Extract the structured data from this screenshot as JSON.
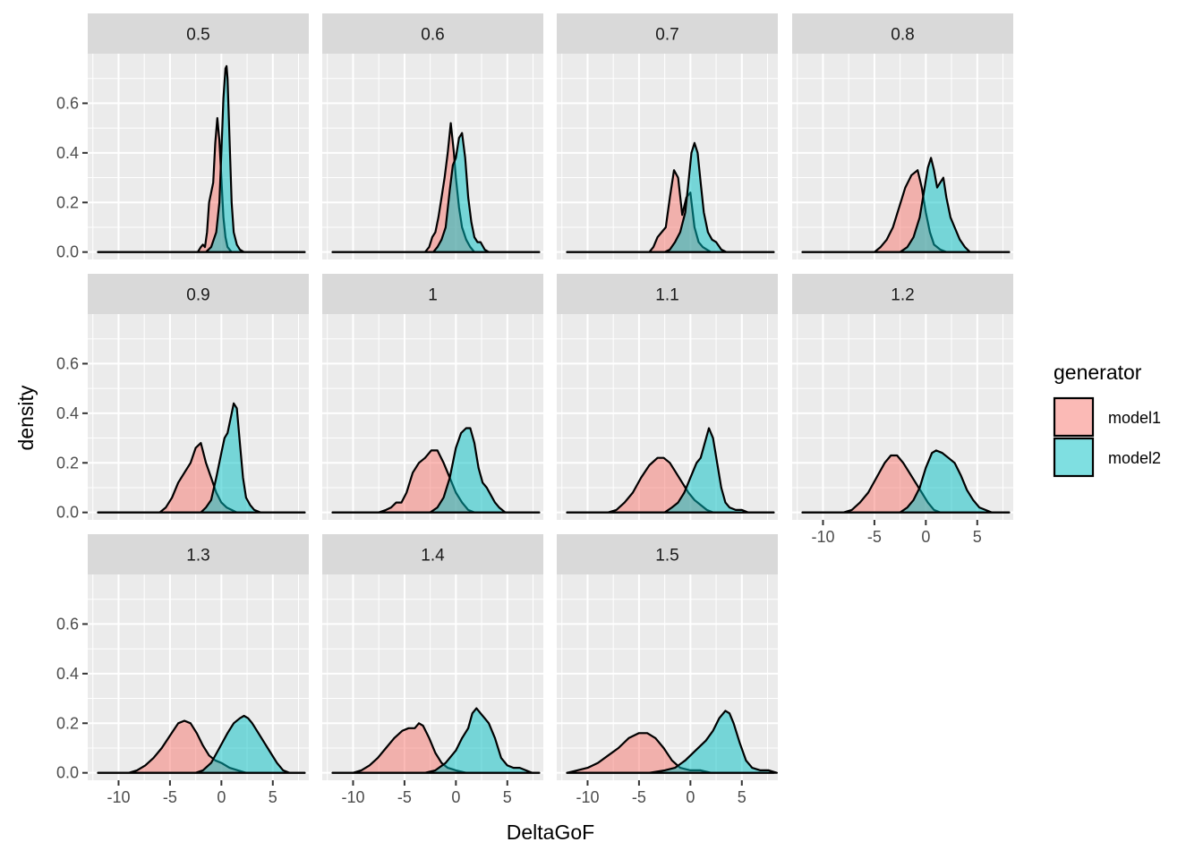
{
  "chart_data": {
    "type": "area",
    "subtype": "faceted-density",
    "xlabel": "DeltaGoF",
    "ylabel": "density",
    "xlim": [
      -13,
      8.5
    ],
    "ylim": [
      -0.03,
      0.8
    ],
    "x_ticks": [
      -10,
      -5,
      0,
      5
    ],
    "x_tick_labels": [
      "-10",
      "-5",
      "0",
      "5"
    ],
    "y_ticks": [
      0.0,
      0.2,
      0.4,
      0.6
    ],
    "y_tick_labels": [
      "0.0",
      "0.2",
      "0.4",
      "0.6"
    ],
    "grid": true,
    "facet_layout": {
      "ncol": 4,
      "nrow": 3
    },
    "legend": {
      "title": "generator",
      "placement": "right",
      "entries": [
        {
          "name": "model1",
          "color": "#F8766D"
        },
        {
          "name": "model2",
          "color": "#00BFC4"
        }
      ]
    },
    "panels": [
      {
        "label": "0.5",
        "series": [
          {
            "name": "model1",
            "x": [
              -2.3,
              -2.0,
              -1.8,
              -1.6,
              -1.4,
              -1.2,
              -1.0,
              -0.8,
              -0.6,
              -0.4,
              -0.2,
              0.0,
              0.2,
              0.4,
              0.6,
              0.8,
              1.0,
              1.2
            ],
            "y": [
              0.0,
              0.02,
              0.03,
              0.02,
              0.08,
              0.2,
              0.24,
              0.28,
              0.44,
              0.54,
              0.45,
              0.3,
              0.14,
              0.06,
              0.02,
              0.01,
              0.0,
              0.0
            ]
          },
          {
            "name": "model2",
            "x": [
              -1.5,
              -1.0,
              -0.5,
              -0.2,
              0.0,
              0.2,
              0.4,
              0.5,
              0.6,
              0.8,
              1.0,
              1.2,
              1.5,
              1.8,
              2.2
            ],
            "y": [
              0.0,
              0.02,
              0.08,
              0.2,
              0.4,
              0.62,
              0.74,
              0.75,
              0.7,
              0.45,
              0.2,
              0.08,
              0.03,
              0.01,
              0.0
            ]
          }
        ]
      },
      {
        "label": "0.6",
        "series": [
          {
            "name": "model1",
            "x": [
              -3.0,
              -2.6,
              -2.3,
              -2.0,
              -1.7,
              -1.4,
              -1.1,
              -0.8,
              -0.5,
              -0.2,
              0.0,
              0.3,
              0.6,
              1.0,
              1.4,
              1.8
            ],
            "y": [
              0.0,
              0.02,
              0.06,
              0.08,
              0.14,
              0.22,
              0.3,
              0.4,
              0.52,
              0.4,
              0.3,
              0.18,
              0.1,
              0.05,
              0.02,
              0.0
            ]
          },
          {
            "name": "model2",
            "x": [
              -2.2,
              -1.8,
              -1.4,
              -1.0,
              -0.6,
              -0.3,
              0.0,
              0.3,
              0.6,
              0.9,
              1.2,
              1.5,
              1.8,
              2.1,
              2.4,
              2.8,
              3.2
            ],
            "y": [
              0.0,
              0.02,
              0.05,
              0.1,
              0.25,
              0.35,
              0.38,
              0.46,
              0.48,
              0.38,
              0.22,
              0.12,
              0.06,
              0.04,
              0.04,
              0.01,
              0.0
            ]
          }
        ]
      },
      {
        "label": "0.7",
        "series": [
          {
            "name": "model1",
            "x": [
              -4.0,
              -3.6,
              -3.2,
              -2.8,
              -2.4,
              -2.0,
              -1.6,
              -1.2,
              -0.8,
              -0.4,
              0.0,
              0.4,
              0.8,
              1.2,
              1.6,
              2.0
            ],
            "y": [
              0.0,
              0.02,
              0.06,
              0.08,
              0.1,
              0.22,
              0.33,
              0.3,
              0.15,
              0.22,
              0.24,
              0.1,
              0.04,
              0.02,
              0.01,
              0.0
            ]
          },
          {
            "name": "model2",
            "x": [
              -2.5,
              -2.0,
              -1.5,
              -1.0,
              -0.5,
              -0.2,
              0.1,
              0.4,
              0.7,
              1.0,
              1.3,
              1.7,
              2.1,
              2.5,
              3.0,
              3.5
            ],
            "y": [
              0.0,
              0.01,
              0.04,
              0.08,
              0.16,
              0.28,
              0.4,
              0.44,
              0.4,
              0.28,
              0.16,
              0.08,
              0.05,
              0.04,
              0.01,
              0.0
            ]
          }
        ]
      },
      {
        "label": "0.8",
        "series": [
          {
            "name": "model1",
            "x": [
              -5.0,
              -4.4,
              -3.8,
              -3.2,
              -2.6,
              -2.0,
              -1.4,
              -0.8,
              -0.4,
              0.0,
              0.4,
              0.8,
              1.4,
              2.0
            ],
            "y": [
              0.0,
              0.02,
              0.05,
              0.1,
              0.18,
              0.26,
              0.31,
              0.33,
              0.26,
              0.16,
              0.08,
              0.03,
              0.01,
              0.0
            ]
          },
          {
            "name": "model2",
            "x": [
              -2.5,
              -1.8,
              -1.2,
              -0.6,
              -0.2,
              0.2,
              0.5,
              0.8,
              1.1,
              1.4,
              1.7,
              2.0,
              2.4,
              2.8,
              3.3,
              3.8,
              4.3
            ],
            "y": [
              0.0,
              0.02,
              0.06,
              0.14,
              0.24,
              0.34,
              0.38,
              0.33,
              0.26,
              0.28,
              0.3,
              0.22,
              0.14,
              0.1,
              0.05,
              0.02,
              0.0
            ]
          }
        ]
      },
      {
        "label": "0.9",
        "series": [
          {
            "name": "model1",
            "x": [
              -6.0,
              -5.4,
              -4.8,
              -4.2,
              -3.6,
              -3.0,
              -2.5,
              -2.0,
              -1.5,
              -1.0,
              -0.5,
              0.0,
              0.5,
              1.0,
              1.5
            ],
            "y": [
              0.0,
              0.02,
              0.06,
              0.12,
              0.16,
              0.2,
              0.26,
              0.28,
              0.2,
              0.14,
              0.08,
              0.04,
              0.02,
              0.01,
              0.0
            ]
          },
          {
            "name": "model2",
            "x": [
              -2.0,
              -1.5,
              -1.0,
              -0.5,
              0.0,
              0.3,
              0.6,
              0.9,
              1.2,
              1.5,
              1.8,
              2.1,
              2.4,
              2.8,
              3.2,
              3.8
            ],
            "y": [
              0.0,
              0.02,
              0.05,
              0.14,
              0.24,
              0.3,
              0.32,
              0.38,
              0.44,
              0.42,
              0.28,
              0.14,
              0.06,
              0.03,
              0.01,
              0.0
            ]
          }
        ]
      },
      {
        "label": "1",
        "series": [
          {
            "name": "model1",
            "x": [
              -7.5,
              -6.8,
              -6.3,
              -5.8,
              -5.3,
              -4.8,
              -4.2,
              -3.6,
              -3.0,
              -2.4,
              -1.8,
              -1.2,
              -0.6,
              0.0,
              0.6,
              1.2,
              1.8
            ],
            "y": [
              0.0,
              0.01,
              0.02,
              0.04,
              0.04,
              0.08,
              0.16,
              0.2,
              0.22,
              0.25,
              0.25,
              0.2,
              0.14,
              0.08,
              0.04,
              0.01,
              0.0
            ]
          },
          {
            "name": "model2",
            "x": [
              -2.5,
              -1.8,
              -1.2,
              -0.6,
              0.0,
              0.5,
              1.0,
              1.4,
              1.8,
              2.2,
              2.6,
              3.0,
              3.4,
              3.8,
              4.2,
              4.8
            ],
            "y": [
              0.0,
              0.02,
              0.06,
              0.14,
              0.26,
              0.32,
              0.34,
              0.34,
              0.28,
              0.18,
              0.12,
              0.1,
              0.07,
              0.04,
              0.02,
              0.0
            ]
          }
        ]
      },
      {
        "label": "1.1",
        "series": [
          {
            "name": "model1",
            "x": [
              -8.0,
              -7.2,
              -6.4,
              -5.6,
              -4.8,
              -4.0,
              -3.2,
              -2.6,
              -2.0,
              -1.4,
              -0.8,
              -0.2,
              0.4,
              1.0,
              1.6,
              2.2
            ],
            "y": [
              0.0,
              0.01,
              0.04,
              0.08,
              0.14,
              0.19,
              0.22,
              0.22,
              0.2,
              0.16,
              0.12,
              0.08,
              0.05,
              0.03,
              0.01,
              0.0
            ]
          },
          {
            "name": "model2",
            "x": [
              -2.5,
              -1.8,
              -1.2,
              -0.6,
              0.0,
              0.6,
              1.0,
              1.4,
              1.8,
              2.2,
              2.6,
              3.0,
              3.4,
              3.8,
              4.4,
              5.0,
              5.6
            ],
            "y": [
              0.0,
              0.02,
              0.04,
              0.08,
              0.14,
              0.2,
              0.22,
              0.28,
              0.34,
              0.3,
              0.2,
              0.1,
              0.04,
              0.02,
              0.01,
              0.01,
              0.0
            ]
          }
        ]
      },
      {
        "label": "1.2",
        "series": [
          {
            "name": "model1",
            "x": [
              -8.0,
              -7.2,
              -6.4,
              -5.6,
              -4.8,
              -4.0,
              -3.4,
              -2.8,
              -2.2,
              -1.6,
              -1.0,
              -0.4,
              0.2,
              0.8,
              1.4
            ],
            "y": [
              0.0,
              0.01,
              0.04,
              0.08,
              0.14,
              0.2,
              0.23,
              0.23,
              0.2,
              0.16,
              0.12,
              0.08,
              0.04,
              0.01,
              0.0
            ]
          },
          {
            "name": "model2",
            "x": [
              -2.5,
              -1.8,
              -1.2,
              -0.6,
              0.0,
              0.6,
              1.0,
              1.6,
              2.2,
              2.8,
              3.4,
              4.0,
              4.6,
              5.2,
              5.8,
              6.4
            ],
            "y": [
              0.0,
              0.02,
              0.05,
              0.1,
              0.18,
              0.24,
              0.25,
              0.24,
              0.22,
              0.2,
              0.15,
              0.09,
              0.05,
              0.02,
              0.01,
              0.0
            ]
          }
        ]
      },
      {
        "label": "1.3",
        "series": [
          {
            "name": "model1",
            "x": [
              -9.0,
              -8.2,
              -7.4,
              -6.6,
              -5.8,
              -5.0,
              -4.2,
              -3.6,
              -3.0,
              -2.4,
              -1.8,
              -1.2,
              -0.6,
              0.0,
              0.8,
              1.6,
              2.4
            ],
            "y": [
              0.0,
              0.01,
              0.03,
              0.06,
              0.1,
              0.15,
              0.2,
              0.21,
              0.2,
              0.16,
              0.11,
              0.07,
              0.05,
              0.04,
              0.02,
              0.01,
              0.0
            ]
          },
          {
            "name": "model2",
            "x": [
              -2.5,
              -1.8,
              -1.0,
              -0.2,
              0.6,
              1.2,
              1.8,
              2.2,
              2.6,
              3.0,
              3.6,
              4.2,
              4.8,
              5.4,
              6.0,
              6.6
            ],
            "y": [
              0.0,
              0.01,
              0.04,
              0.1,
              0.16,
              0.2,
              0.22,
              0.23,
              0.22,
              0.2,
              0.16,
              0.12,
              0.08,
              0.04,
              0.01,
              0.0
            ]
          }
        ]
      },
      {
        "label": "1.4",
        "series": [
          {
            "name": "model1",
            "x": [
              -10.0,
              -9.2,
              -8.4,
              -7.6,
              -6.8,
              -6.0,
              -5.2,
              -4.6,
              -4.0,
              -3.6,
              -3.2,
              -2.6,
              -2.0,
              -1.4,
              -0.8,
              0.0,
              1.0
            ],
            "y": [
              0.0,
              0.01,
              0.03,
              0.06,
              0.1,
              0.14,
              0.17,
              0.18,
              0.18,
              0.2,
              0.19,
              0.14,
              0.08,
              0.04,
              0.02,
              0.01,
              0.0
            ]
          },
          {
            "name": "model2",
            "x": [
              -3.0,
              -2.0,
              -1.0,
              0.0,
              0.6,
              1.2,
              1.6,
              2.0,
              2.4,
              2.8,
              3.2,
              3.8,
              4.4,
              5.0,
              5.6,
              6.2,
              6.8,
              7.4
            ],
            "y": [
              0.0,
              0.01,
              0.04,
              0.09,
              0.14,
              0.18,
              0.24,
              0.26,
              0.24,
              0.22,
              0.2,
              0.14,
              0.06,
              0.03,
              0.02,
              0.02,
              0.01,
              0.0
            ]
          }
        ]
      },
      {
        "label": "1.5",
        "series": [
          {
            "name": "model1",
            "x": [
              -12.0,
              -11.0,
              -10.0,
              -9.0,
              -8.0,
              -7.0,
              -6.0,
              -5.0,
              -4.2,
              -3.4,
              -2.6,
              -1.8,
              -1.0,
              0.0,
              1.0,
              2.0
            ],
            "y": [
              0.0,
              0.01,
              0.02,
              0.04,
              0.07,
              0.1,
              0.14,
              0.16,
              0.16,
              0.14,
              0.1,
              0.05,
              0.02,
              0.01,
              0.01,
              0.0
            ]
          },
          {
            "name": "model2",
            "x": [
              -4.0,
              -2.5,
              -1.5,
              -0.5,
              0.5,
              1.5,
              2.2,
              2.8,
              3.4,
              3.8,
              4.2,
              4.8,
              5.4,
              6.0,
              6.8,
              7.6,
              8.4
            ],
            "y": [
              0.0,
              0.01,
              0.02,
              0.05,
              0.09,
              0.13,
              0.17,
              0.22,
              0.25,
              0.24,
              0.2,
              0.12,
              0.05,
              0.02,
              0.01,
              0.01,
              0.0
            ]
          }
        ]
      }
    ]
  }
}
